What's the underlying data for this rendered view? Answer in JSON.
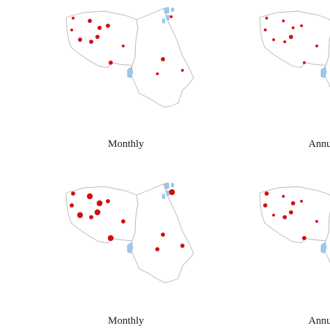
{
  "captions": {
    "top_middle": "Monthly",
    "top_right": "Annu",
    "bottom_middle": "Monthly",
    "bottom_right": "Annu"
  },
  "colors": {
    "station": "#d40d12",
    "lake": "#9dc8ec",
    "boundary": "#b5b5b5",
    "background": "#ffffff"
  },
  "panels": [
    {
      "id": "top-middle",
      "stations": [
        {
          "id": "w1",
          "size": "small"
        },
        {
          "id": "w2",
          "size": "medium"
        },
        {
          "id": "w3",
          "size": "medium"
        },
        {
          "id": "w4",
          "size": "small"
        },
        {
          "id": "w5",
          "size": "medium"
        },
        {
          "id": "w6",
          "size": "medium"
        },
        {
          "id": "w7",
          "size": "medium"
        },
        {
          "id": "w8",
          "size": "medium"
        },
        {
          "id": "w9",
          "size": "small"
        },
        {
          "id": "w10",
          "size": "medium"
        },
        {
          "id": "e1",
          "size": "medium"
        },
        {
          "id": "e2",
          "size": "small"
        },
        {
          "id": "e3",
          "size": "small"
        },
        {
          "id": "e4",
          "size": "small"
        }
      ]
    },
    {
      "id": "top-right",
      "stations": [
        {
          "id": "w1",
          "size": "small"
        },
        {
          "id": "w2",
          "size": "small"
        },
        {
          "id": "w3",
          "size": "small"
        },
        {
          "id": "w4",
          "size": "small"
        },
        {
          "id": "w5",
          "size": "small"
        },
        {
          "id": "w6",
          "size": "small"
        },
        {
          "id": "w7",
          "size": "small"
        },
        {
          "id": "w8",
          "size": "medium"
        },
        {
          "id": "w9",
          "size": "small"
        },
        {
          "id": "w10",
          "size": "small"
        }
      ]
    },
    {
      "id": "bottom-middle",
      "stations": [
        {
          "id": "w1",
          "size": "medium"
        },
        {
          "id": "w2",
          "size": "large"
        },
        {
          "id": "w3",
          "size": "medium"
        },
        {
          "id": "w4",
          "size": "medium"
        },
        {
          "id": "w5",
          "size": "large"
        },
        {
          "id": "w6",
          "size": "large"
        },
        {
          "id": "w7",
          "size": "medium"
        },
        {
          "id": "w8",
          "size": "large"
        },
        {
          "id": "w9",
          "size": "medium"
        },
        {
          "id": "w10",
          "size": "large"
        },
        {
          "id": "e0",
          "size": "large"
        },
        {
          "id": "e1",
          "size": "medium"
        },
        {
          "id": "e2",
          "size": "medium"
        },
        {
          "id": "e3",
          "size": "medium"
        },
        {
          "id": "e4",
          "size": "medium"
        }
      ]
    },
    {
      "id": "bottom-right",
      "stations": [
        {
          "id": "w1",
          "size": "medium"
        },
        {
          "id": "w2",
          "size": "small"
        },
        {
          "id": "w3",
          "size": "small"
        },
        {
          "id": "w4",
          "size": "medium"
        },
        {
          "id": "w5",
          "size": "medium"
        },
        {
          "id": "w6",
          "size": "small"
        },
        {
          "id": "w7",
          "size": "medium"
        },
        {
          "id": "w8",
          "size": "medium"
        },
        {
          "id": "w9",
          "size": "small"
        },
        {
          "id": "w10",
          "size": "medium"
        }
      ]
    }
  ]
}
